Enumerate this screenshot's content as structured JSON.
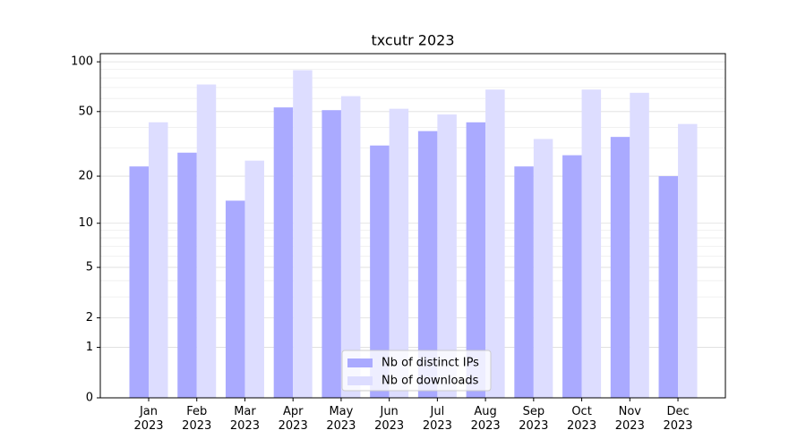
{
  "chart_data": {
    "type": "bar",
    "title": "txcutr 2023",
    "categories": [
      "Jan\n2023",
      "Feb\n2023",
      "Mar\n2023",
      "Apr\n2023",
      "May\n2023",
      "Jun\n2023",
      "Jul\n2023",
      "Aug\n2023",
      "Sep\n2023",
      "Oct\n2023",
      "Nov\n2023",
      "Dec\n2023"
    ],
    "series": [
      {
        "name": "Nb of distinct IPs",
        "color": "#aaaaff",
        "values": [
          23,
          28,
          14,
          53,
          51,
          31,
          38,
          43,
          23,
          27,
          35,
          20
        ]
      },
      {
        "name": "Nb of downloads",
        "color": "#ddddff",
        "values": [
          43,
          73,
          25,
          89,
          62,
          52,
          48,
          68,
          34,
          68,
          65,
          42
        ]
      }
    ],
    "yscale": "log1p",
    "ylim": [
      0,
      112
    ],
    "yticks": [
      0,
      1,
      2,
      5,
      10,
      20,
      50,
      100
    ],
    "yminorticks": [
      3,
      4,
      6,
      7,
      8,
      9,
      30,
      40,
      60,
      70,
      80,
      90
    ],
    "grid": true,
    "legend": "lower center"
  }
}
